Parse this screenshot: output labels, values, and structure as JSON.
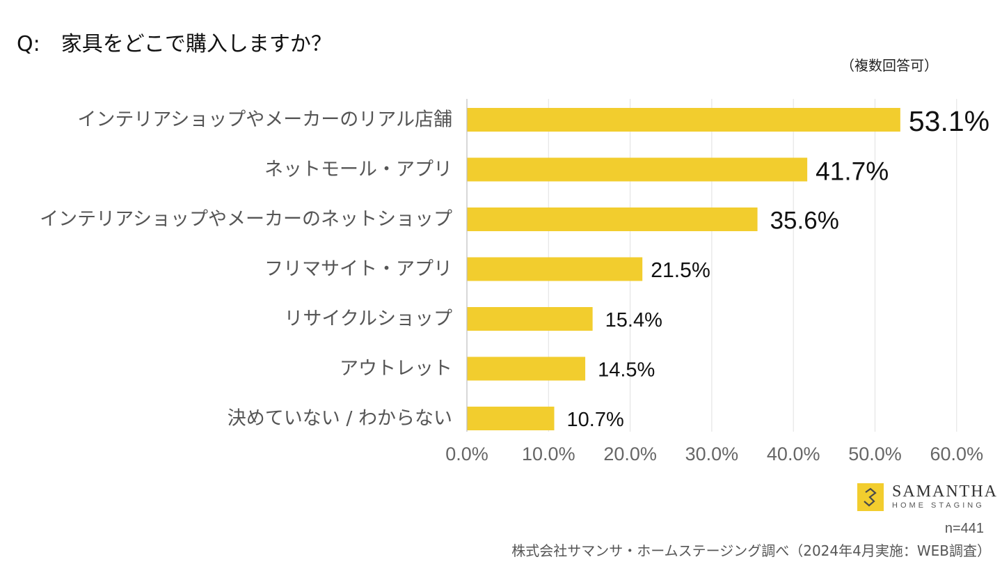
{
  "question": {
    "prefix": "Q:",
    "text": "家具をどこで購入しますか？"
  },
  "note": "（複数回答可）",
  "chart_data": {
    "type": "bar",
    "orientation": "horizontal",
    "categories": [
      "インテリアショップやメーカーのリアル店舗",
      "ネットモール・アプリ",
      "インテリアショップやメーカーのネットショップ",
      "フリマサイト・アプリ",
      "リサイクルショップ",
      "アウトレット",
      "決めていない / わからない"
    ],
    "values": [
      53.1,
      41.7,
      35.6,
      21.5,
      15.4,
      14.5,
      10.7
    ],
    "value_labels": [
      "53.1%",
      "41.7%",
      "35.6%",
      "21.5%",
      "15.4%",
      "14.5%",
      "10.7%"
    ],
    "xlim": [
      0,
      60
    ],
    "ticks": [
      0,
      10,
      20,
      30,
      40,
      50,
      60
    ],
    "tick_labels": [
      "0.0%",
      "10.0%",
      "20.0%",
      "30.0%",
      "40.0%",
      "50.0%",
      "60.0%"
    ],
    "grid": true,
    "legend": "none",
    "bar_color": "#f2cd2e",
    "grid_color": "#e0e0e0",
    "axis_color": "#bfbfbf"
  },
  "logo": {
    "name": "SAMANTHA",
    "sub": "HOME STAGING",
    "mark_color": "#f2cd2e"
  },
  "sample_size": "n=441",
  "source": "株式会社サマンサ・ホームステージング調べ（2024年4月実施：WEB調査）"
}
